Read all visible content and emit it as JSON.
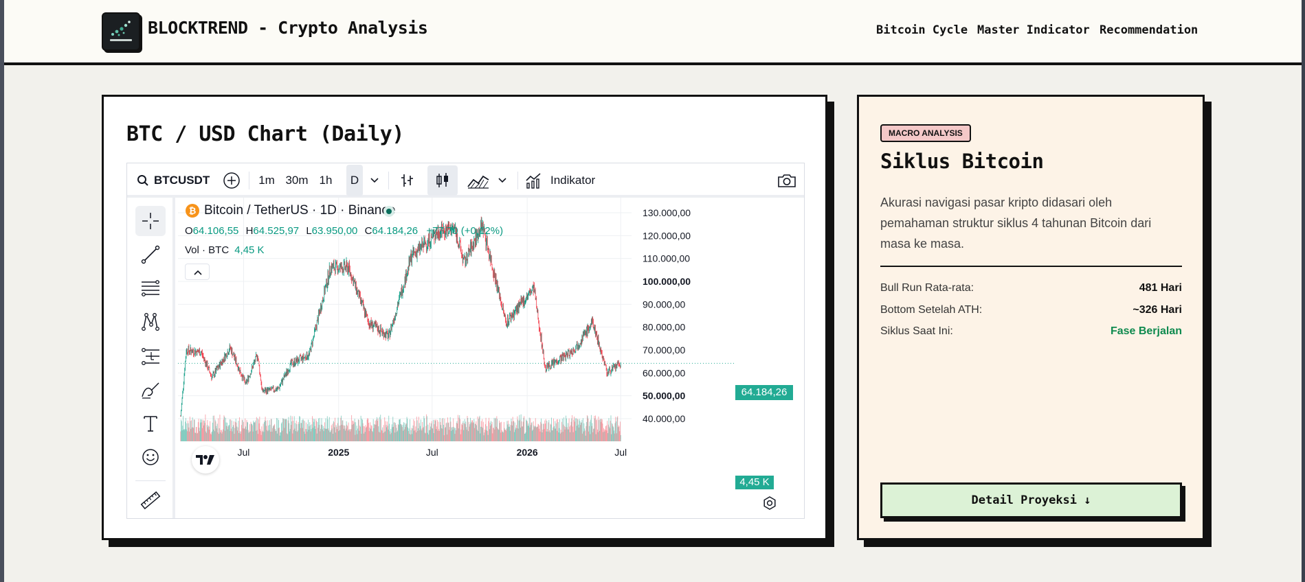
{
  "header": {
    "brand": "BLOCKTREND - Crypto Analysis",
    "nav": [
      "Bitcoin Cycle",
      "Master Indicator",
      "Recommendation"
    ]
  },
  "chart_card": {
    "title": "BTC / USD Chart (Daily)"
  },
  "tradingview": {
    "symbol": "BTCUSDT",
    "intervals": [
      "1m",
      "30m",
      "1h",
      "D"
    ],
    "active_interval": "D",
    "indicators_label": "Indikator",
    "legend": {
      "pair": "Bitcoin / TetherUS · 1D · Binance",
      "o_label": "O",
      "o": "64.106,55",
      "h_label": "H",
      "h": "64.525,97",
      "l_label": "L",
      "l": "63.950,00",
      "c_label": "C",
      "c": "64.184,26",
      "change": "+77,70 (+0,12%)",
      "vol_label": "Vol · BTC",
      "vol": "4,45 K"
    },
    "last_price_badge": "64.184,26",
    "volume_badge": "4,45 K",
    "colors": {
      "up": "#089981",
      "down": "#f23645",
      "badge": "#22ab94"
    }
  },
  "chart_data": {
    "type": "candlestick",
    "title": "Bitcoin / TetherUS · 1D · Binance",
    "x_ticks": [
      "Jul",
      "2025",
      "Jul",
      "2026",
      "Jul"
    ],
    "y_ticks": [
      "130.000,00",
      "120.000,00",
      "110.000,00",
      "100.000,00",
      "90.000,00",
      "80.000,00",
      "70.000,00",
      "60.000,00",
      "50.000,00",
      "40.000,00"
    ],
    "y_range": [
      35000,
      135000
    ],
    "approx_price_path": [
      [
        "2024-03-01",
        41000
      ],
      [
        "2024-03-12",
        70000
      ],
      [
        "2024-04-10",
        69000
      ],
      [
        "2024-05-01",
        58000
      ],
      [
        "2024-06-05",
        71000
      ],
      [
        "2024-07-05",
        55000
      ],
      [
        "2024-07-28",
        68000
      ],
      [
        "2024-08-06",
        52000
      ],
      [
        "2024-09-06",
        53000
      ],
      [
        "2024-10-01",
        64000
      ],
      [
        "2024-11-05",
        68000
      ],
      [
        "2024-12-16",
        106000
      ],
      [
        "2025-01-20",
        106000
      ],
      [
        "2025-02-28",
        82000
      ],
      [
        "2025-04-08",
        76000
      ],
      [
        "2025-05-22",
        111000
      ],
      [
        "2025-07-14",
        122000
      ],
      [
        "2025-08-14",
        123000
      ],
      [
        "2025-09-01",
        108000
      ],
      [
        "2025-10-06",
        125000
      ],
      [
        "2025-11-21",
        82000
      ],
      [
        "2026-01-14",
        97000
      ],
      [
        "2026-02-05",
        62000
      ],
      [
        "2026-04-01",
        70000
      ],
      [
        "2026-05-08",
        82000
      ],
      [
        "2026-06-05",
        60000
      ],
      [
        "2026-07-01",
        64184
      ]
    ],
    "last_close": 64184.26,
    "last_volume_btc": "4,45 K"
  },
  "macro_card": {
    "badge": "MACRO ANALYSIS",
    "title": "Siklus Bitcoin",
    "description": "Akurasi navigasi pasar kripto didasari oleh pemahaman struktur siklus 4 tahunan Bitcoin dari masa ke masa.",
    "stats": [
      {
        "label": "Bull Run Rata-rata:",
        "value": "481 Hari",
        "color": "#111111"
      },
      {
        "label": "Bottom Setelah ATH:",
        "value": "~326 Hari",
        "color": "#111111"
      },
      {
        "label": "Siklus Saat Ini:",
        "value": "Fase Berjalan",
        "color": "#0f8a4f"
      }
    ],
    "cta": "Detail Proyeksi ↓"
  }
}
